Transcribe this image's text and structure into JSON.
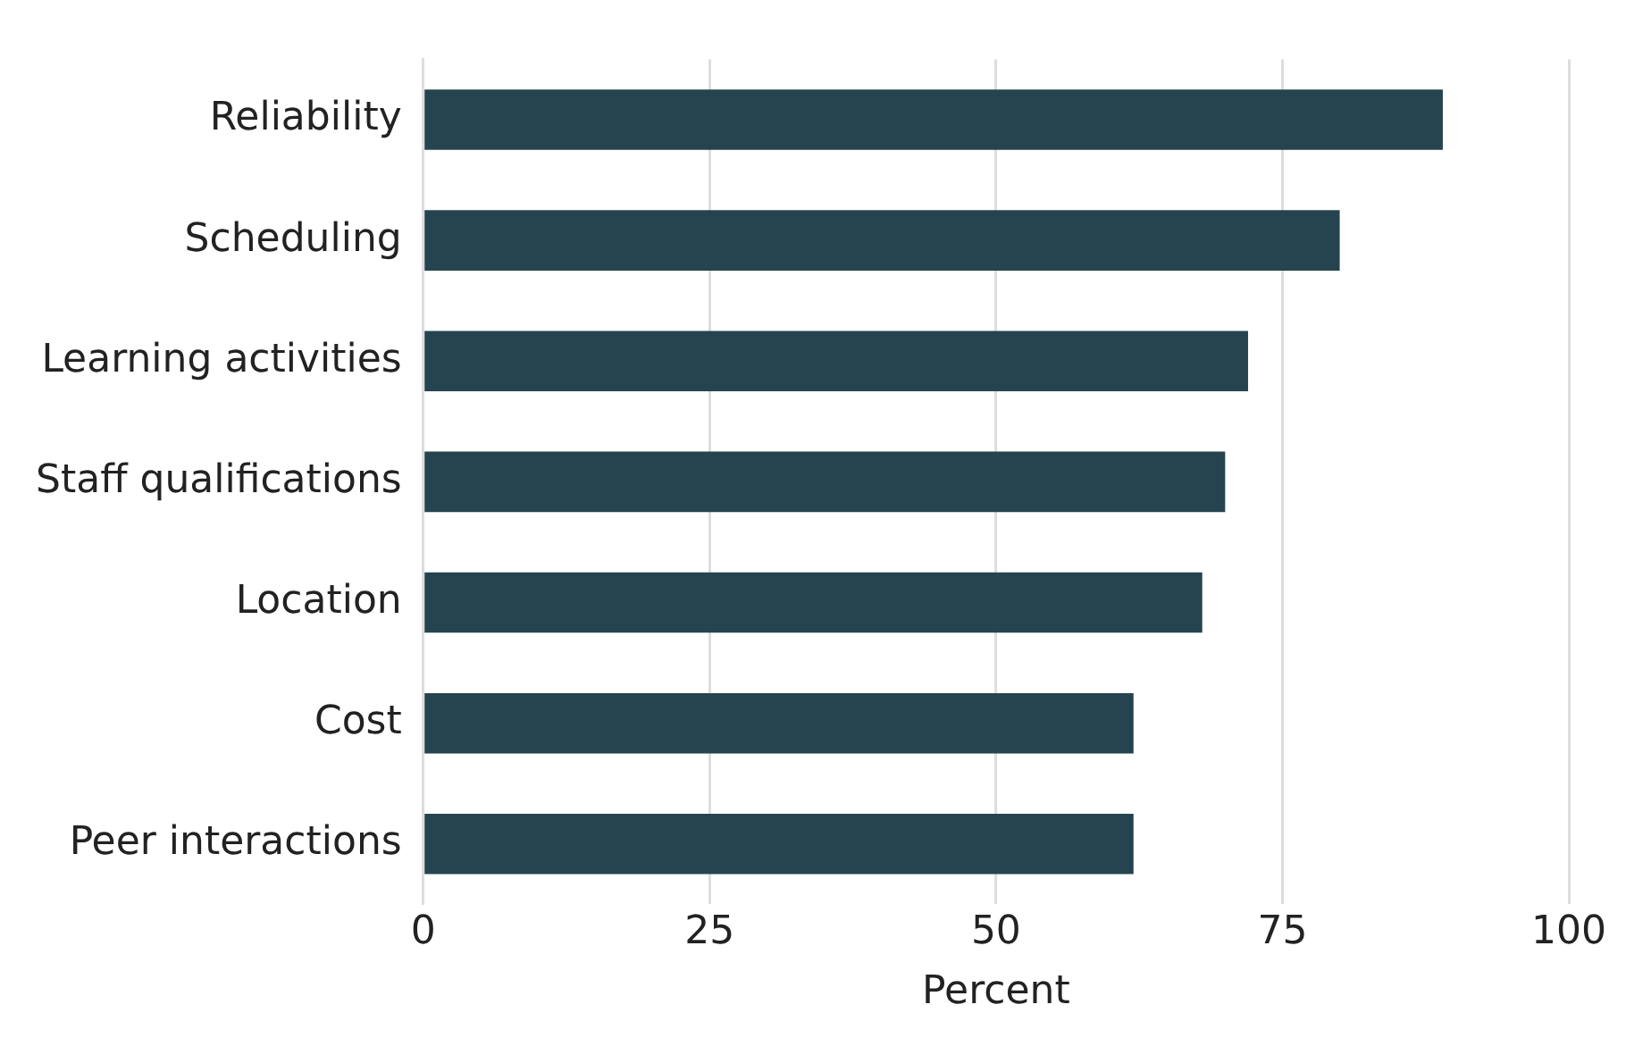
{
  "chart_data": {
    "type": "bar",
    "orientation": "horizontal",
    "xlabel": "Percent",
    "categories": [
      "Reliability",
      "Scheduling",
      "Learning activities",
      "Staff qualifications",
      "Location",
      "Cost",
      "Peer interactions"
    ],
    "values": [
      89,
      80,
      72,
      70,
      68,
      62,
      62
    ],
    "color": "#25444f",
    "xlim": [
      0,
      100
    ],
    "xticks": [
      0,
      25,
      50,
      75,
      100
    ],
    "grid": "x",
    "legend": false
  }
}
